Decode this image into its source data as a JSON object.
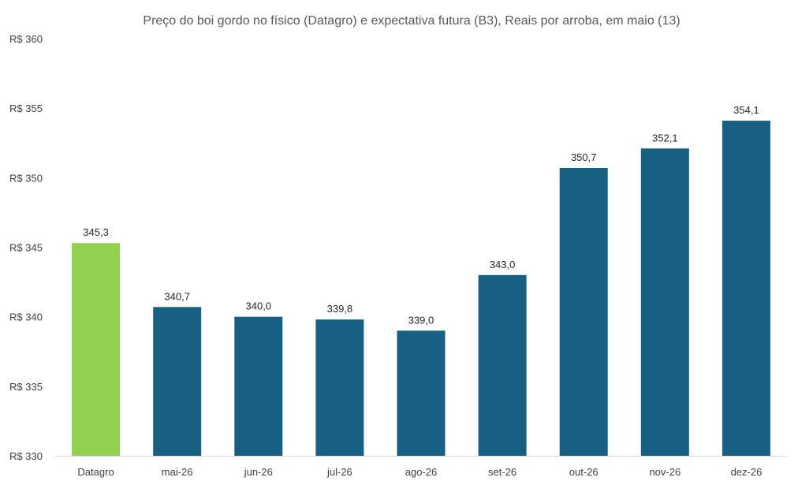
{
  "chart_data": {
    "type": "bar",
    "title": "Preço do boi gordo no físico (Datagro)  e expectativa futura (B3), Reais por arroba, em maio (13)",
    "categories": [
      "Datagro",
      "mai-26",
      "jun-26",
      "jul-26",
      "ago-26",
      "set-26",
      "out-26",
      "nov-26",
      "dez-26"
    ],
    "values": [
      345.3,
      340.7,
      340.0,
      339.8,
      339.0,
      343.0,
      350.7,
      352.1,
      354.1
    ],
    "value_labels": [
      "345,3",
      "340,7",
      "340,0",
      "339,8",
      "339,0",
      "343,0",
      "350,7",
      "352,1",
      "354,1"
    ],
    "bar_colors": [
      "#92d050",
      "#176083",
      "#176083",
      "#176083",
      "#176083",
      "#176083",
      "#176083",
      "#176083",
      "#176083"
    ],
    "ylim": [
      330,
      360
    ],
    "y_ticks": [
      330,
      335,
      340,
      345,
      350,
      355,
      360
    ],
    "y_tick_labels": [
      "R$ 330",
      "R$ 335",
      "R$ 340",
      "R$ 345",
      "R$ 350",
      "R$ 355",
      "R$ 360"
    ],
    "xlabel": "",
    "ylabel": "",
    "grid": false,
    "legend": "none",
    "axis_color": "#d9d9d9"
  }
}
